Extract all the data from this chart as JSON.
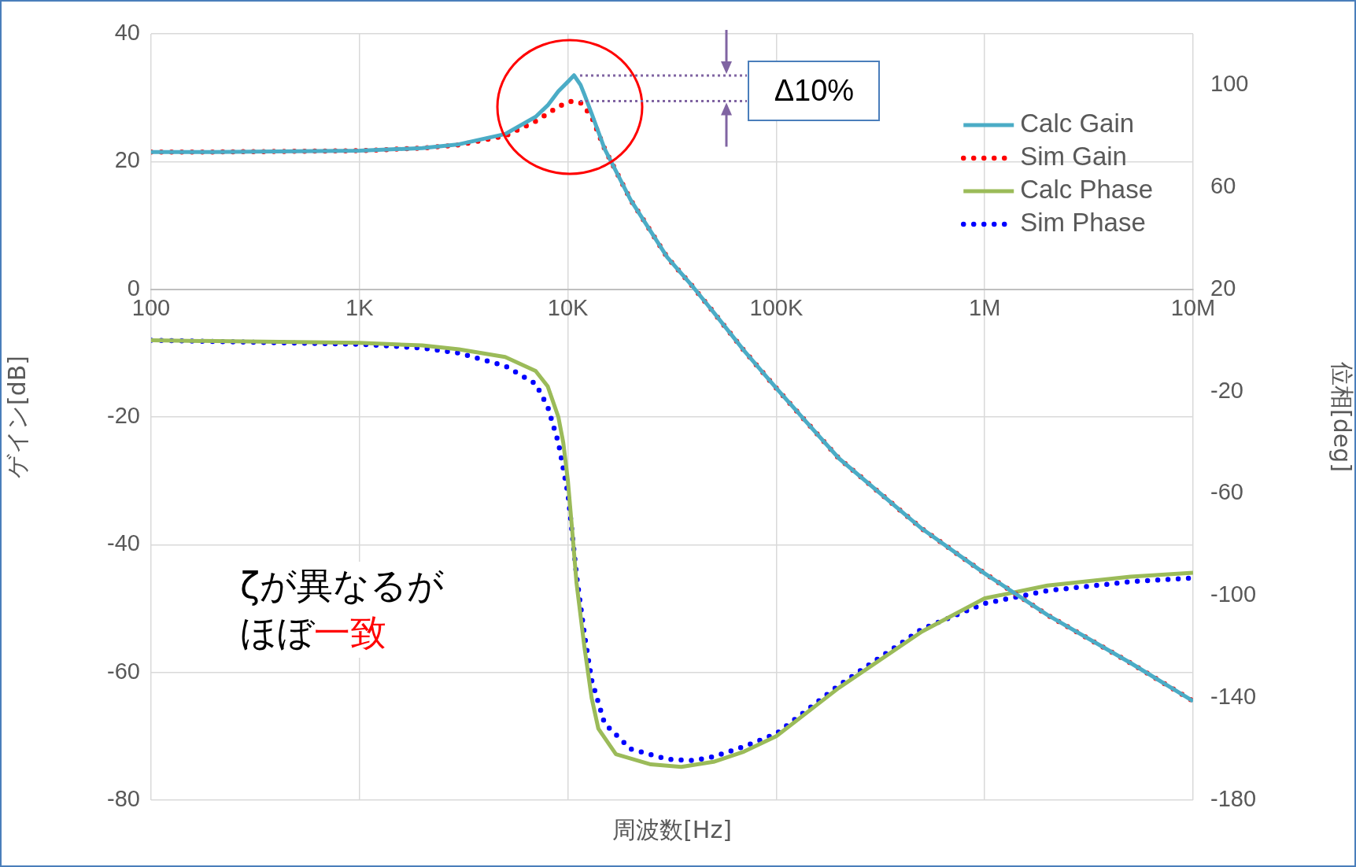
{
  "chart_data": {
    "type": "line",
    "xlabel": "周波数[Hz]",
    "ylabel": "ゲイン[dB]",
    "y2label": "位相[deg]",
    "annotations": [
      {
        "text": "Δ10%",
        "x": 10700,
        "y": 33.5
      },
      "ζが異なるが",
      "ほぼ一致"
    ],
    "log": "x",
    "grid": true,
    "legend": "top right",
    "marker": "none",
    "xlim": [
      100,
      10000000
    ],
    "xticks": [
      100,
      {
        "value": 1000,
        "label": "1K"
      },
      {
        "value": 10000,
        "label": "10K"
      },
      {
        "value": 100000,
        "label": "100K"
      },
      {
        "value": 1000000,
        "label": "1M"
      },
      {
        "value": 10000000,
        "label": "10M"
      }
    ],
    "ylim": [
      -80,
      40
    ],
    "yticks": [
      -80,
      -60,
      -40,
      -20,
      0,
      20,
      40
    ],
    "y2lim": [
      -180,
      120
    ],
    "y2ticks": [
      -180,
      -140,
      -100,
      -60,
      -20,
      20,
      60,
      100
    ],
    "series": [
      {
        "name": "Calc Gain",
        "color": "#4bacc6",
        "line_style": "solid",
        "x": [
          100,
          200,
          500,
          1000,
          2000,
          3000,
          5000,
          7000,
          8000,
          9000,
          10000,
          10700,
          11500,
          12000,
          13000,
          15000,
          20000,
          30000,
          40000,
          50000,
          70000,
          100000,
          200000,
          500000,
          1000000,
          2000000,
          5000000,
          10000000
        ],
        "values": [
          21.5,
          21.5,
          21.6,
          21.7,
          22.1,
          22.7,
          24.3,
          27,
          28.8,
          31,
          32.5,
          33.5,
          32,
          30.5,
          27.5,
          22,
          14,
          5,
          0.3,
          -3.6,
          -9.6,
          -15.5,
          -26.5,
          -37.5,
          -44.5,
          -51,
          -58.5,
          -64.5
        ]
      },
      {
        "name": "Sim Gain",
        "color": "#ff0000",
        "line_style": "dotted",
        "x": [
          100,
          200,
          500,
          1000,
          2000,
          3000,
          5000,
          7000,
          8000,
          9000,
          10000,
          10700,
          11500,
          12000,
          13000,
          15000,
          20000,
          30000,
          40000,
          50000,
          70000,
          100000,
          200000,
          500000,
          1000000,
          2000000,
          5000000,
          10000000
        ],
        "values": [
          21.5,
          21.5,
          21.6,
          21.7,
          22.1,
          22.6,
          24,
          26.3,
          27.5,
          28.6,
          29.3,
          29.5,
          29.2,
          28.5,
          27,
          22,
          14,
          5,
          0.3,
          -3.6,
          -9.6,
          -15.5,
          -26.5,
          -37.5,
          -44.5,
          -51,
          -58.5,
          -64.5
        ]
      },
      {
        "name": "Calc Phase",
        "color": "#9bbb59",
        "line_style": "solid",
        "axis": "y2",
        "x": [
          100,
          1000,
          2000,
          3000,
          5000,
          7000,
          8000,
          9000,
          9500,
          10000,
          10500,
          11000,
          12000,
          13000,
          14000,
          17000,
          25000,
          35000,
          50000,
          70000,
          100000,
          200000,
          500000,
          1000000,
          2000000,
          5000000,
          10000000
        ],
        "values": [
          0,
          -1,
          -2,
          -3.5,
          -6.5,
          -12,
          -18,
          -30,
          -40,
          -55,
          -75,
          -95,
          -120,
          -140,
          -152,
          -162,
          -166,
          -167,
          -165,
          -161,
          -155,
          -136,
          -114,
          -101,
          -96,
          -92.5,
          -91
        ]
      },
      {
        "name": "Sim Phase",
        "color": "#0000ff",
        "line_style": "dotted",
        "axis": "y2",
        "x": [
          100,
          1000,
          2000,
          3000,
          5000,
          7000,
          8000,
          9000,
          10000,
          10500,
          11000,
          12000,
          13000,
          15000,
          20000,
          30000,
          40000,
          50000,
          70000,
          100000,
          200000,
          500000,
          1000000,
          2000000,
          5000000,
          10000000
        ],
        "values": [
          0,
          -1.5,
          -3,
          -5,
          -10,
          -17,
          -26,
          -40,
          -60,
          -76,
          -92,
          -115,
          -133,
          -150,
          -160,
          -164,
          -164.5,
          -163,
          -159,
          -154,
          -135,
          -113,
          -103,
          -98,
          -94.5,
          -93
        ]
      }
    ]
  }
}
